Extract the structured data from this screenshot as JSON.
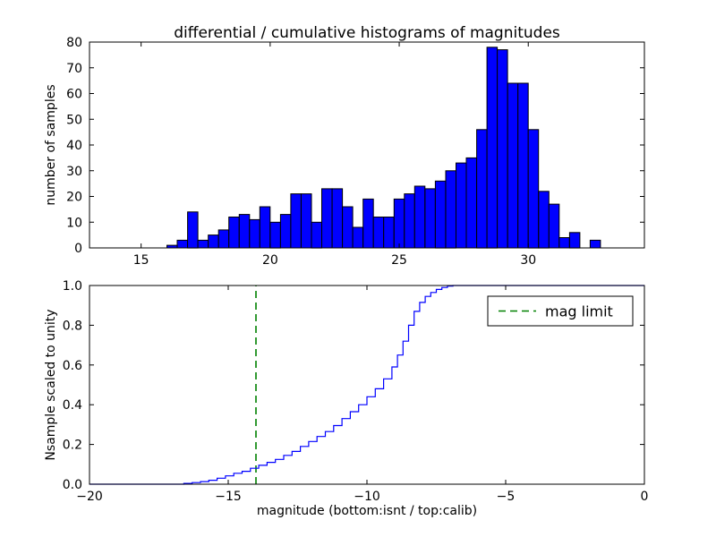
{
  "colors": {
    "bar_fill": "#0000ff",
    "bar_edge": "#000000",
    "line": "#0000ff",
    "vline": "#008000",
    "axis": "#000000",
    "background": "#ffffff"
  },
  "chart_data": [
    {
      "type": "bar",
      "title": "differential / cumulative histograms of magnitudes",
      "ylabel": "number of samples",
      "xlabel": "",
      "xlim": [
        13,
        34.5
      ],
      "ylim": [
        0,
        80
      ],
      "xticks": [
        15,
        20,
        25,
        30
      ],
      "xtick_labels": [
        "15",
        "20",
        "25",
        "30"
      ],
      "yticks": [
        0,
        10,
        20,
        30,
        40,
        50,
        60,
        70,
        80
      ],
      "ytick_labels": [
        "0",
        "10",
        "20",
        "30",
        "40",
        "50",
        "60",
        "70",
        "80"
      ],
      "grid": false,
      "bin_start": 16.0,
      "bin_width": 0.4,
      "values": [
        1,
        3,
        14,
        3,
        5,
        7,
        12,
        13,
        11,
        16,
        10,
        13,
        21,
        21,
        10,
        23,
        23,
        16,
        8,
        19,
        12,
        12,
        19,
        21,
        24,
        23,
        26,
        30,
        33,
        35,
        46,
        78,
        77,
        64,
        64,
        46,
        22,
        17,
        4,
        6,
        0,
        3
      ]
    },
    {
      "type": "line",
      "step": true,
      "title": "",
      "ylabel": "Nsample scaled to unity",
      "xlabel": "magnitude (bottom:isnt / top:calib)",
      "xlim": [
        -20,
        0
      ],
      "ylim": [
        0,
        1
      ],
      "xticks": [
        -20,
        -15,
        -10,
        -5,
        0
      ],
      "xtick_labels": [
        "−20",
        "−15",
        "−10",
        "−5",
        "0"
      ],
      "yticks": [
        0,
        0.2,
        0.4,
        0.6,
        0.8,
        1.0
      ],
      "ytick_labels": [
        "0.0",
        "0.2",
        "0.4",
        "0.6",
        "0.8",
        "1.0"
      ],
      "grid": false,
      "points": [
        [
          -20,
          0
        ],
        [
          -17,
          0
        ],
        [
          -16.6,
          0.004
        ],
        [
          -16.3,
          0.008
        ],
        [
          -16,
          0.013
        ],
        [
          -15.7,
          0.02
        ],
        [
          -15.4,
          0.03
        ],
        [
          -15.1,
          0.042
        ],
        [
          -14.8,
          0.055
        ],
        [
          -14.5,
          0.065
        ],
        [
          -14.2,
          0.08
        ],
        [
          -13.9,
          0.095
        ],
        [
          -13.6,
          0.11
        ],
        [
          -13.3,
          0.125
        ],
        [
          -13,
          0.145
        ],
        [
          -12.7,
          0.165
        ],
        [
          -12.4,
          0.19
        ],
        [
          -12.1,
          0.215
        ],
        [
          -11.8,
          0.24
        ],
        [
          -11.5,
          0.265
        ],
        [
          -11.2,
          0.295
        ],
        [
          -10.9,
          0.33
        ],
        [
          -10.6,
          0.365
        ],
        [
          -10.3,
          0.4
        ],
        [
          -10,
          0.44
        ],
        [
          -9.7,
          0.48
        ],
        [
          -9.4,
          0.53
        ],
        [
          -9.1,
          0.59
        ],
        [
          -8.9,
          0.65
        ],
        [
          -8.7,
          0.72
        ],
        [
          -8.5,
          0.8
        ],
        [
          -8.3,
          0.87
        ],
        [
          -8.1,
          0.915
        ],
        [
          -7.9,
          0.945
        ],
        [
          -7.7,
          0.965
        ],
        [
          -7.5,
          0.98
        ],
        [
          -7.3,
          0.99
        ],
        [
          -7.1,
          0.997
        ],
        [
          -6.9,
          1
        ],
        [
          0,
          1
        ]
      ],
      "vline": {
        "x": -14,
        "label": "mag limit"
      },
      "legend": {
        "position": "upper right",
        "entries": [
          {
            "label": "mag limit",
            "style": "dashed-green"
          }
        ]
      }
    }
  ]
}
